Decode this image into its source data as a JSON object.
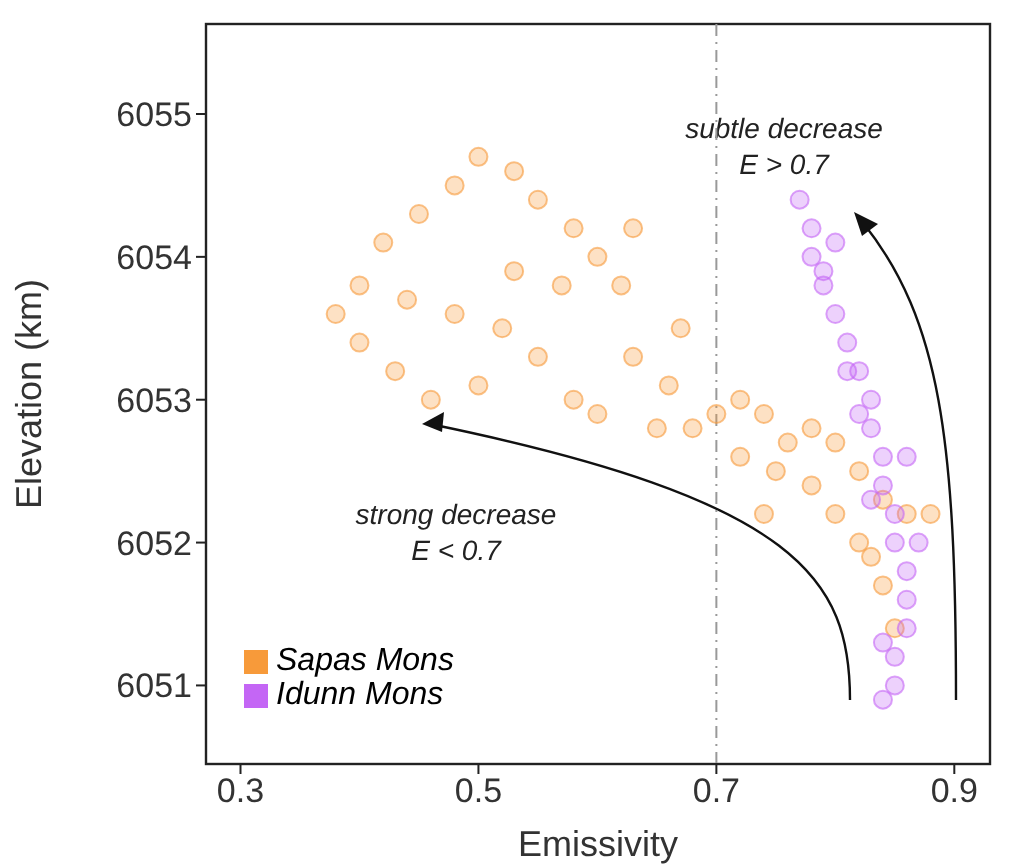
{
  "chart_data": {
    "type": "scatter",
    "xlabel": "Emissivity",
    "ylabel": "Elevation (km)",
    "xlim": [
      0.271,
      0.93
    ],
    "xticks": [
      0.3,
      0.5,
      0.7,
      0.9
    ],
    "ylim": [
      6050.45,
      6055.63
    ],
    "yticks": [
      6051,
      6052,
      6053,
      6054,
      6055
    ],
    "legend": "bottom left",
    "marker": "circle",
    "ref_lines": [
      {
        "axis": "x",
        "value": 0.7,
        "color": "#999999"
      }
    ],
    "annotations": [
      "strong decrease\nE < 0.7",
      "subtle decrease\nE > 0.7"
    ],
    "series": [
      {
        "name": "Sapas Mons",
        "color": "#f79a3a",
        "x": [
          0.4,
          0.42,
          0.45,
          0.48,
          0.5,
          0.53,
          0.55,
          0.58,
          0.6,
          0.62,
          0.38,
          0.4,
          0.43,
          0.46,
          0.5,
          0.52,
          0.55,
          0.58,
          0.6,
          0.63,
          0.65,
          0.68,
          0.7,
          0.72,
          0.74,
          0.76,
          0.78,
          0.8,
          0.82,
          0.84,
          0.86,
          0.88,
          0.82,
          0.84,
          0.85,
          0.8,
          0.78,
          0.75,
          0.72,
          0.66,
          0.57,
          0.53,
          0.48,
          0.44,
          0.63,
          0.67,
          0.74,
          0.83
        ],
        "values": [
          6053.8,
          6054.1,
          6054.3,
          6054.5,
          6054.7,
          6054.6,
          6054.4,
          6054.2,
          6054.0,
          6053.8,
          6053.6,
          6053.4,
          6053.2,
          6053.0,
          6053.1,
          6053.5,
          6053.3,
          6053.0,
          6052.9,
          6053.3,
          6052.8,
          6052.8,
          6052.9,
          6053.0,
          6052.9,
          6052.7,
          6052.8,
          6052.7,
          6052.5,
          6052.3,
          6052.2,
          6052.2,
          6052.0,
          6051.7,
          6051.4,
          6052.2,
          6052.4,
          6052.5,
          6052.6,
          6053.1,
          6053.8,
          6053.9,
          6053.6,
          6053.7,
          6054.2,
          6053.5,
          6052.2,
          6051.9
        ]
      },
      {
        "name": "Idunn Mons",
        "color": "#c466f5",
        "x": [
          0.77,
          0.78,
          0.78,
          0.79,
          0.8,
          0.81,
          0.82,
          0.83,
          0.83,
          0.84,
          0.84,
          0.85,
          0.85,
          0.86,
          0.86,
          0.86,
          0.85,
          0.85,
          0.84,
          0.79,
          0.81,
          0.82,
          0.86,
          0.87,
          0.84,
          0.83,
          0.8
        ],
        "values": [
          6054.4,
          6054.2,
          6054.0,
          6053.8,
          6053.6,
          6053.4,
          6053.2,
          6053.0,
          6052.8,
          6052.6,
          6052.4,
          6052.2,
          6052.0,
          6051.8,
          6051.6,
          6051.4,
          6051.2,
          6051.0,
          6050.9,
          6053.9,
          6053.2,
          6052.9,
          6052.6,
          6052.0,
          6051.3,
          6052.3,
          6054.1
        ]
      }
    ]
  }
}
